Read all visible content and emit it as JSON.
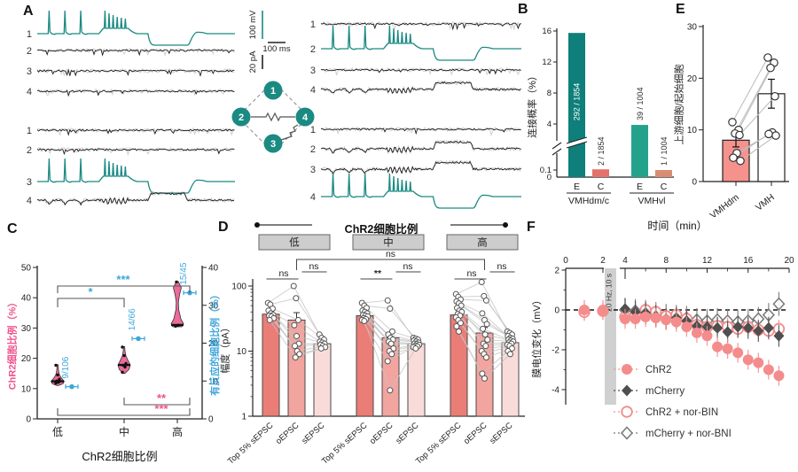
{
  "panel_labels": {
    "A": "A",
    "B": "B",
    "C": "C",
    "D": "D",
    "E": "E",
    "F": "F"
  },
  "panelA": {
    "scalebars": {
      "v1": "100 mV",
      "v2": "20 pA",
      "h": "100 ms"
    },
    "schematic": {
      "cells": [
        "1",
        "2",
        "3",
        "4"
      ]
    },
    "trace_color": "#1A8A82",
    "blocks": [
      {
        "id": "top-left",
        "rows": [
          {
            "n": "1",
            "type": "stim"
          },
          {
            "n": "2",
            "type": "flat"
          },
          {
            "n": "3",
            "type": "flat"
          },
          {
            "n": "4",
            "type": "flat"
          }
        ]
      },
      {
        "id": "bottom-left",
        "rows": [
          {
            "n": "1",
            "type": "flat"
          },
          {
            "n": "2",
            "type": "flat"
          },
          {
            "n": "3",
            "type": "stim"
          },
          {
            "n": "4",
            "type": "coupled"
          }
        ]
      },
      {
        "id": "top-right",
        "rows": [
          {
            "n": "1",
            "type": "flat"
          },
          {
            "n": "2",
            "type": "stim"
          },
          {
            "n": "3",
            "type": "flat"
          },
          {
            "n": "4",
            "type": "coupled"
          }
        ]
      },
      {
        "id": "bottom-right",
        "rows": [
          {
            "n": "1",
            "type": "flat"
          },
          {
            "n": "2",
            "type": "coupled"
          },
          {
            "n": "3",
            "type": "coupled"
          },
          {
            "n": "4",
            "type": "stim"
          }
        ]
      }
    ]
  },
  "chart_data": [
    {
      "panel": "B",
      "type": "bar",
      "ylabel": "连接概率（%）",
      "axis_break": true,
      "upper_ticks": [
        4,
        8,
        12,
        16
      ],
      "lower_ticks": [
        "0",
        "0.1"
      ],
      "groups": [
        {
          "name": "VMHdm/c",
          "bars": [
            {
              "cat": "E",
              "pct": 15.75,
              "label": "292 / 1854",
              "color": "#0E7F7A"
            },
            {
              "cat": "C",
              "pct": 0.11,
              "label": "2 / 1854",
              "color": "#E4726B"
            }
          ]
        },
        {
          "name": "VMHvl",
          "bars": [
            {
              "cat": "E",
              "pct": 3.88,
              "label": "39 / 1004",
              "color": "#25A28C"
            },
            {
              "cat": "C",
              "pct": 0.1,
              "label": "1 / 1004",
              "color": "#D98D73"
            }
          ]
        }
      ]
    },
    {
      "panel": "C",
      "type": "violin",
      "xlabel": "ChR2细胞比例",
      "categories": [
        "低",
        "中",
        "高"
      ],
      "violin_color": "#EC6B9B",
      "left_axis": {
        "label": "ChR2细胞比例（%）",
        "color": "#F0538C",
        "ticks": [
          0,
          10,
          20,
          30,
          40,
          50
        ],
        "range": [
          0,
          50
        ]
      },
      "right_axis": {
        "label": "有反应的细胞比例（%）",
        "color": "#3FA6DC",
        "ticks": [
          0,
          10,
          20,
          30,
          40
        ],
        "range": [
          0,
          40
        ]
      },
      "violins": [
        {
          "median": 12.4,
          "points": [
            11.8,
            12.1,
            12.5,
            13.1,
            14.5,
            17.7
          ],
          "shape": [
            [
              11,
              0.8
            ],
            [
              11.6,
              6
            ],
            [
              12.4,
              7.5
            ],
            [
              13.4,
              4.5
            ],
            [
              14.6,
              2
            ],
            [
              16,
              1
            ],
            [
              17.9,
              0.6
            ]
          ]
        },
        {
          "median": 17.8,
          "points": [
            15.4,
            17.1,
            17.7,
            18.3,
            20.9,
            23.7
          ],
          "shape": [
            [
              15,
              0.8
            ],
            [
              16.3,
              5.5
            ],
            [
              17.8,
              7
            ],
            [
              19.2,
              4.5
            ],
            [
              20.8,
              2
            ],
            [
              22.4,
              1
            ],
            [
              23.9,
              0.6
            ]
          ]
        },
        {
          "median": 31,
          "points": [
            30.6,
            30.9,
            45.2
          ],
          "shape": [
            [
              30.4,
              5
            ],
            [
              31.4,
              7
            ],
            [
              33,
              4
            ],
            [
              36,
              1.6
            ],
            [
              38.5,
              1.2
            ],
            [
              41,
              2.5
            ],
            [
              43.3,
              4.5
            ],
            [
              45.4,
              1
            ]
          ]
        }
      ],
      "responding": [
        {
          "label": "9/106",
          "value": 8.5
        },
        {
          "label": "14/66",
          "value": 21.2
        },
        {
          "label": "15/45",
          "value": 33.3
        }
      ],
      "sig_top": [
        {
          "a": 0,
          "b": 1,
          "label": "*"
        },
        {
          "a": 0,
          "b": 2,
          "label": "***"
        }
      ],
      "sig_bottom": [
        {
          "a": 1,
          "b": 2,
          "label": "**"
        },
        {
          "a": 0,
          "b": 2,
          "label": "***"
        }
      ]
    },
    {
      "panel": "D",
      "type": "grouped-log-bar",
      "header": "ChR2细胞比例",
      "group_boxes": [
        "低",
        "中",
        "高"
      ],
      "ylabel": "幅度（pA）",
      "yticks": [
        1,
        10,
        100
      ],
      "sig_across": "ns",
      "categories": [
        "Top 5% sEPSC",
        "oEPSC",
        "sEPSC"
      ],
      "bar_colors": [
        "#EB7D77",
        "#F2A49F",
        "#F9DCDA"
      ],
      "groups": [
        {
          "name": "低",
          "means": [
            37,
            30,
            13
          ],
          "errs": [
            4,
            9,
            1.5
          ],
          "sig": [
            "ns",
            "ns"
          ],
          "points": [
            [
              55,
              52,
              45,
              42,
              38,
              36,
              35,
              34,
              32,
              30
            ],
            [
              100,
              65,
              30,
              25,
              17,
              13,
              12,
              10,
              9,
              8
            ],
            [
              18,
              16,
              15,
              14,
              13.5,
              13,
              12.5,
              12,
              11.5,
              11
            ]
          ]
        },
        {
          "name": "中",
          "means": [
            35,
            16,
            13
          ],
          "errs": [
            4,
            3,
            1.5
          ],
          "sig": [
            "**",
            "ns"
          ],
          "points": [
            [
              55,
              50,
              46,
              42,
              40,
              38,
              36,
              35,
              34,
              32,
              31,
              30,
              29
            ],
            [
              60,
              45,
              20,
              18,
              16,
              15,
              14,
              13,
              11,
              10,
              9,
              7,
              2.5
            ],
            [
              16,
              15.5,
              15,
              14.5,
              14,
              13.5,
              13,
              12.8,
              12.5,
              12,
              11.8,
              11.5,
              11
            ]
          ]
        },
        {
          "name": "高",
          "means": [
            36,
            19,
            13.5
          ],
          "errs": [
            4,
            4,
            2
          ],
          "sig": [
            "ns",
            "ns"
          ],
          "points": [
            [
              75,
              68,
              62,
              58,
              54,
              50,
              46,
              42,
              40,
              37,
              35,
              33,
              30,
              27,
              24,
              20
            ],
            [
              115,
              70,
              60,
              38,
              30,
              26,
              22,
              18,
              15,
              13,
              12,
              10,
              9,
              8,
              4.5,
              3.8
            ],
            [
              20,
              19,
              18,
              17,
              16,
              15.5,
              15,
              14.5,
              14,
              13.5,
              13,
              12.5,
              12,
              11,
              10,
              9
            ]
          ]
        }
      ]
    },
    {
      "panel": "E",
      "type": "paired-bar",
      "ylabel": "上游细胞/起始细胞",
      "yticks": [
        0,
        10,
        20,
        30
      ],
      "categories": [
        "VMHdm",
        "VMH"
      ],
      "values": [
        8,
        17
      ],
      "errors": [
        1.3,
        2.8
      ],
      "colors": [
        "#F5928D",
        "#FFFFFF"
      ],
      "pairs": [
        [
          11.5,
          24
        ],
        [
          10,
          23
        ],
        [
          9.3,
          22
        ],
        [
          9,
          16.5
        ],
        [
          5.5,
          9.5
        ],
        [
          4.6,
          9.2
        ],
        [
          4,
          8.9
        ]
      ]
    },
    {
      "panel": "F",
      "type": "scatter",
      "xlabel": "时间（min）",
      "ylabel": "膜电位变化（mV）",
      "xticks": [
        0,
        2,
        4,
        8,
        12,
        16,
        20
      ],
      "yticks": [
        2,
        0,
        -2,
        -4
      ],
      "stim": {
        "label": "20 Hz, 10 s",
        "from": 2,
        "to": 3
      },
      "series": [
        {
          "name": "ChR2",
          "marker": "circle-filled",
          "color": "#F48C8C",
          "x": [
            1,
            2,
            4,
            5,
            6,
            7,
            8,
            9,
            10,
            11,
            12,
            13,
            14,
            15,
            16,
            17,
            18,
            19
          ],
          "y": [
            0,
            0,
            -0.45,
            -0.45,
            -0.35,
            -0.4,
            -0.5,
            -0.6,
            -0.85,
            -1.15,
            -1.3,
            -1.85,
            -1.95,
            -2.15,
            -2.5,
            -2.65,
            -3,
            -3.3
          ],
          "err": 0.5
        },
        {
          "name": "mCherry",
          "marker": "diamond-filled",
          "color": "#4F4F4F",
          "x": [
            4,
            5,
            6,
            7,
            8,
            9,
            10,
            11,
            12,
            13,
            14,
            15,
            16,
            17,
            18,
            19
          ],
          "y": [
            0.05,
            -0.1,
            -0.15,
            -0.3,
            -0.45,
            -0.4,
            -0.55,
            -0.8,
            -0.85,
            -0.9,
            -1.1,
            -0.85,
            -0.9,
            -1.05,
            -0.9,
            -1.3
          ],
          "err": 0.55
        },
        {
          "name": "ChR2 + nor-BIN",
          "marker": "circle-open",
          "color": "#F48C8C",
          "x": [
            1,
            2,
            4,
            5,
            6,
            7,
            8,
            9,
            10,
            11,
            12,
            13,
            14,
            15,
            16,
            17,
            18,
            19
          ],
          "y": [
            -0.1,
            -0.05,
            -0.35,
            -0.3,
            0,
            -0.1,
            -0.3,
            -0.25,
            -0.45,
            -0.75,
            -0.85,
            -0.8,
            -0.85,
            -0.95,
            -0.85,
            -1,
            -1.05,
            -0.95
          ],
          "err": 0.45
        },
        {
          "name": "mCherry + nor-BNI",
          "marker": "diamond-open",
          "color": "#777777",
          "x": [
            4,
            5,
            6,
            7,
            8,
            9,
            10,
            11,
            12,
            13,
            14,
            15,
            16,
            17,
            18,
            19
          ],
          "y": [
            0,
            -0.05,
            -0.1,
            -0.2,
            -0.3,
            -0.35,
            -0.4,
            -0.5,
            -0.55,
            -0.5,
            -0.55,
            -0.6,
            -0.55,
            -0.45,
            -0.25,
            0.3
          ],
          "err": 0.6
        }
      ]
    }
  ]
}
